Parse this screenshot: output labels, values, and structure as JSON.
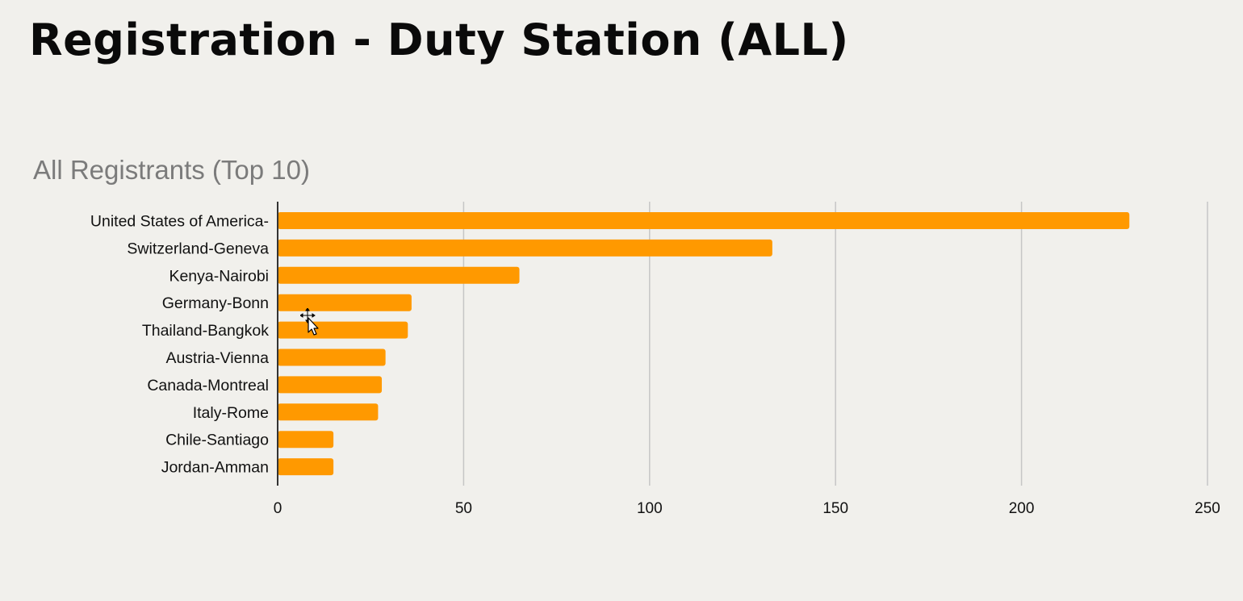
{
  "slide": {
    "title": "Registration - Duty Station (ALL)"
  },
  "colors": {
    "background": "#f1f0ec",
    "bar": "#ff9900",
    "gridline": "#c6c6c6",
    "axis": "#333333",
    "chart_title": "#7b7b7b"
  },
  "chart_data": {
    "type": "bar",
    "orientation": "horizontal",
    "title": "All Registrants (Top 10)",
    "xlabel": "",
    "ylabel": "",
    "categories": [
      "United States of America-",
      "Switzerland-Geneva",
      "Kenya-Nairobi",
      "Germany-Bonn",
      "Thailand-Bangkok",
      "Austria-Vienna",
      "Canada-Montreal",
      "Italy-Rome",
      "Chile-Santiago",
      "Jordan-Amman"
    ],
    "values": [
      229,
      133,
      65,
      36,
      35,
      29,
      28,
      27,
      15,
      15
    ],
    "xlim": [
      0,
      250
    ],
    "xticks": [
      0,
      50,
      100,
      150,
      200,
      250
    ],
    "grid": "vertical",
    "legend": "none"
  }
}
